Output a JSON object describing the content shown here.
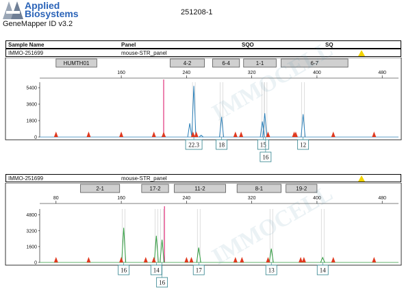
{
  "brand": {
    "line1": "Applied",
    "line2": "Biosystems"
  },
  "app": {
    "name": "GeneMapper ID v3.2"
  },
  "document": {
    "title": "251208-1"
  },
  "table_header": {
    "sample_name": "Sample Name",
    "panel": "Panel",
    "sqo": "SQO",
    "sq": "SQ"
  },
  "panels": [
    {
      "sample": "IMMO-251699",
      "panel": "mouse-STR_panel",
      "dye_color": "#2a7fb8",
      "markers": [
        {
          "label": "HUMTH01",
          "from": 80,
          "to": 130
        },
        {
          "label": "4-2",
          "from": 220,
          "to": 262
        },
        {
          "label": "6-4",
          "from": 272,
          "to": 305
        },
        {
          "label": "1-1",
          "from": 310,
          "to": 350
        },
        {
          "label": "6-7",
          "from": 356,
          "to": 438
        }
      ],
      "x_ticks": [
        "160",
        "240",
        "320",
        "400",
        "480"
      ],
      "y_ticks": [
        "5400",
        "3600",
        "1800",
        "0"
      ],
      "y_max": 6000,
      "peaks": [
        {
          "bp": 249,
          "rfu": 5600
        },
        {
          "bp": 244,
          "rfu": 1500
        },
        {
          "bp": 283,
          "rfu": 2200
        },
        {
          "bp": 333,
          "rfu": 1700
        },
        {
          "bp": 336,
          "rfu": 2600
        },
        {
          "bp": 383,
          "rfu": 2500
        },
        {
          "bp": 212,
          "rfu": 300
        },
        {
          "bp": 258,
          "rfu": 200
        }
      ],
      "alleles": [
        {
          "label": "22.3",
          "bp": 249,
          "row": 0
        },
        {
          "label": "18",
          "bp": 283,
          "row": 0
        },
        {
          "label": "15",
          "bp": 334,
          "row": 0
        },
        {
          "label": "16",
          "bp": 337,
          "row": 1
        },
        {
          "label": "12",
          "bp": 383,
          "row": 0
        }
      ]
    },
    {
      "sample": "IMMO-251699",
      "panel": "mouse-STR_panel",
      "dye_color": "#2c9a3c",
      "markers": [
        {
          "label": "2-1",
          "from": 110,
          "to": 158
        },
        {
          "label": "17-2",
          "from": 185,
          "to": 218
        },
        {
          "label": "11-2",
          "from": 225,
          "to": 288
        },
        {
          "label": "8-1",
          "from": 302,
          "to": 356
        },
        {
          "label": "19-2",
          "from": 362,
          "to": 400
        }
      ],
      "x_ticks": [
        "80",
        "160",
        "240",
        "320",
        "400",
        "480"
      ],
      "y_ticks": [
        "4800",
        "3200",
        "1600",
        "0"
      ],
      "y_max": 5400,
      "peaks": [
        {
          "bp": 163,
          "rfu": 3500
        },
        {
          "bp": 203,
          "rfu": 2700
        },
        {
          "bp": 210,
          "rfu": 2300
        },
        {
          "bp": 255,
          "rfu": 1500
        },
        {
          "bp": 344,
          "rfu": 1400
        },
        {
          "bp": 407,
          "rfu": 500
        }
      ],
      "alleles": [
        {
          "label": "16",
          "bp": 163,
          "row": 0
        },
        {
          "label": "14",
          "bp": 203,
          "row": 0
        },
        {
          "label": "16",
          "bp": 210,
          "row": 1
        },
        {
          "label": "17",
          "bp": 255,
          "row": 0
        },
        {
          "label": "13",
          "bp": 344,
          "row": 0
        },
        {
          "label": "14",
          "bp": 407,
          "row": 0
        }
      ]
    }
  ],
  "watermark": {
    "text": "IMMOCELL"
  },
  "colors": {
    "size_std": "#e0391f",
    "marker_line": "#e0307a",
    "warning": "#f2d300"
  }
}
